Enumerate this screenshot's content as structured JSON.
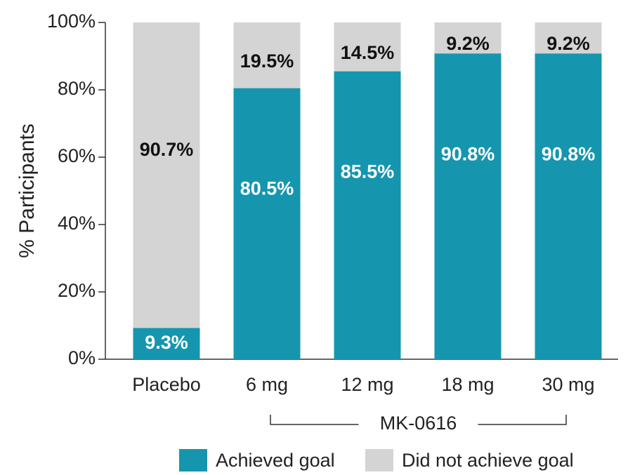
{
  "chart_data": {
    "type": "stacked_bar",
    "y_label": "% Participants",
    "categories": [
      "Placebo",
      "6 mg",
      "12 mg",
      "18 mg",
      "30 mg"
    ],
    "group_label": "MK-0616",
    "series": [
      {
        "name": "Achieved goal",
        "color": "#1596ae",
        "values": [
          9.3,
          80.5,
          85.5,
          90.8,
          90.8
        ],
        "value_labels": [
          "9.3%",
          "80.5%",
          "85.5%",
          "90.8%",
          "90.8%"
        ]
      },
      {
        "name": "Did not achieve goal",
        "color": "#d4d4d4",
        "values": [
          90.7,
          19.5,
          14.5,
          9.2,
          9.2
        ],
        "value_labels": [
          "90.7%",
          "19.5%",
          "14.5%",
          "9.2%",
          "9.2%"
        ]
      }
    ],
    "ylim": [
      0,
      100
    ],
    "yticks": [
      {
        "value": 0,
        "label": "0%"
      },
      {
        "value": 20,
        "label": "20%"
      },
      {
        "value": 40,
        "label": "40%"
      },
      {
        "value": 60,
        "label": "60%"
      },
      {
        "value": 80,
        "label": "80%"
      },
      {
        "value": 100,
        "label": "100%"
      }
    ],
    "legend": "bottom"
  }
}
